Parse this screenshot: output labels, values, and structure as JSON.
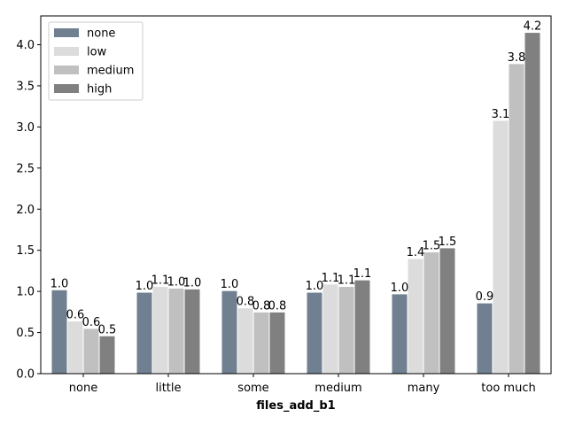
{
  "chart_data": {
    "type": "bar",
    "title": "",
    "xlabel": "files_add_b1",
    "ylabel": "",
    "categories": [
      "none",
      "little",
      "some",
      "medium",
      "many",
      "too much"
    ],
    "ylim": [
      0,
      4.35
    ],
    "yticks": [
      "0.0",
      "0.5",
      "1.0",
      "1.5",
      "2.0",
      "2.5",
      "3.0",
      "3.5",
      "4.0"
    ],
    "grid": false,
    "legend_position": "upper-left",
    "series": [
      {
        "name": "none",
        "color": "#708090",
        "values": [
          1.02,
          0.99,
          1.01,
          0.99,
          0.97,
          0.86
        ],
        "labels": [
          "1.0",
          "1.0",
          "1.0",
          "1.0",
          "1.0",
          "0.9"
        ]
      },
      {
        "name": "low",
        "color": "#dcdcdc",
        "values": [
          0.64,
          1.06,
          0.8,
          1.09,
          1.4,
          3.08
        ],
        "labels": [
          "0.6",
          "1.1",
          "0.8",
          "1.1",
          "1.4",
          "3.1"
        ]
      },
      {
        "name": "medium",
        "color": "#c0c0c0",
        "values": [
          0.55,
          1.04,
          0.75,
          1.06,
          1.48,
          3.77
        ],
        "labels": [
          "0.6",
          "1.0",
          "0.8",
          "1.1",
          "1.5",
          "3.8"
        ]
      },
      {
        "name": "high",
        "color": "#808080",
        "values": [
          0.46,
          1.03,
          0.75,
          1.14,
          1.53,
          4.15
        ],
        "labels": [
          "0.5",
          "1.0",
          "0.8",
          "1.1",
          "1.5",
          "4.2"
        ]
      }
    ]
  }
}
